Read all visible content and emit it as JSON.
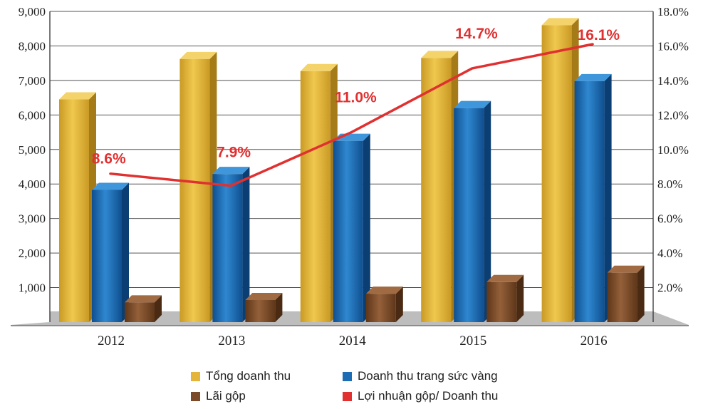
{
  "chart_data": {
    "type": "bar",
    "categories": [
      "2012",
      "2013",
      "2014",
      "2015",
      "2016"
    ],
    "series": [
      {
        "name": "Tổng doanh thu",
        "axis": "left",
        "color": "#e3b53a",
        "values": [
          6450,
          7620,
          7270,
          7650,
          8600
        ]
      },
      {
        "name": "Doanh thu trang sức vàng",
        "axis": "left",
        "color": "#1c6db3",
        "values": [
          3830,
          4290,
          5250,
          6200,
          6980
        ]
      },
      {
        "name": "Lãi gộp",
        "axis": "left",
        "color": "#7a4a2a",
        "values": [
          570,
          640,
          820,
          1160,
          1430
        ]
      },
      {
        "name": "Lợi nhuận gộp/ Doanh thu",
        "axis": "right",
        "type": "line",
        "color": "#e03030",
        "values": [
          8.6,
          7.9,
          11.0,
          14.7,
          16.1
        ],
        "labels": [
          "8.6%",
          "7.9%",
          "11.0%",
          "14.7%",
          "16.1%"
        ]
      }
    ],
    "y_left": {
      "range": [
        0,
        9000
      ],
      "ticks": [
        "",
        "1,000",
        "2,000",
        "3,000",
        "4,000",
        "5,000",
        "6,000",
        "7,000",
        "8,000",
        "9,000"
      ]
    },
    "y_right": {
      "range": [
        0,
        18
      ],
      "ticks": [
        "",
        "2.0%",
        "4.0%",
        "6.0%",
        "8.0%",
        "10.0%",
        "12.0%",
        "14.0%",
        "16.0%",
        "18.0%"
      ]
    },
    "grid": true,
    "legend_position": "bottom"
  }
}
